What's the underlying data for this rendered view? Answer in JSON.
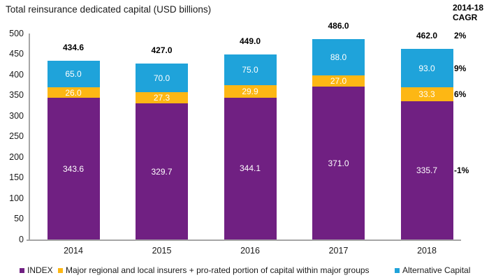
{
  "title": "Total reinsurance dedicated capital (USD billions)",
  "cagr": {
    "header_line1": "2014-18",
    "header_line2": "CAGR",
    "total_cagr": "2%"
  },
  "colors": {
    "index_purple": "#702082",
    "regional_orange": "#FDB714",
    "alternative_blue": "#1FA3DA",
    "axis_gray": "#A6A6A6"
  },
  "chart_data": {
    "type": "bar",
    "stacked": true,
    "title": "Total reinsurance dedicated capital (USD billions)",
    "xlabel": "",
    "ylabel": "",
    "categories": [
      "2014",
      "2015",
      "2016",
      "2017",
      "2018"
    ],
    "series": [
      {
        "name": "INDEX",
        "color": "#702082",
        "values": [
          343.6,
          329.7,
          344.1,
          371.0,
          335.7
        ],
        "cagr": "-1%"
      },
      {
        "name": "Major regional and local insurers + pro-rated portion of capital within major groups",
        "color": "#FDB714",
        "values": [
          26.0,
          27.3,
          29.9,
          27.0,
          33.3
        ],
        "cagr": "6%"
      },
      {
        "name": "Alternative Capital",
        "color": "#1FA3DA",
        "values": [
          65.0,
          70.0,
          75.0,
          88.0,
          93.0
        ],
        "cagr": "9%"
      }
    ],
    "totals": [
      434.6,
      427.0,
      449.0,
      486.0,
      462.0
    ],
    "totals_cagr": "2%",
    "ylim": [
      0,
      500
    ],
    "yticks": [
      0,
      50,
      100,
      150,
      200,
      250,
      300,
      350,
      400,
      450,
      500
    ],
    "grid": false,
    "legend_position": "bottom"
  }
}
